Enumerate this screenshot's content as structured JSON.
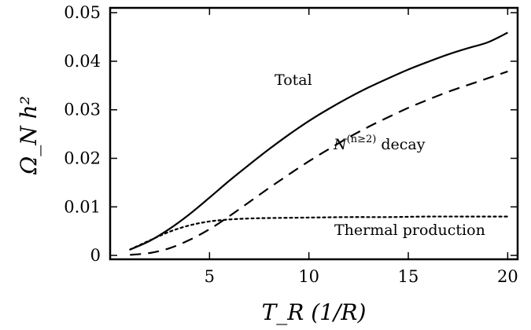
{
  "chart_data": {
    "type": "line",
    "xlabel": "T_R (1/R)",
    "ylabel": "Ω_N h²",
    "xlim": [
      0,
      20.5
    ],
    "ylim": [
      -0.0008,
      0.051
    ],
    "xticks": [
      5,
      10,
      15,
      20
    ],
    "xtick_labels": [
      "5",
      "10",
      "15",
      "20"
    ],
    "yticks": [
      0,
      0.01,
      0.02,
      0.03,
      0.04,
      0.05
    ],
    "ytick_labels": [
      "0",
      "0.01",
      "0.02",
      "0.03",
      "0.04",
      "0.05"
    ],
    "grid": false,
    "legend": "none",
    "series": [
      {
        "name": "Total",
        "style": "solid",
        "x": [
          1,
          2,
          3,
          4,
          5,
          6,
          7,
          8,
          9,
          10,
          11,
          12,
          13,
          14,
          15,
          16,
          17,
          18,
          19,
          20
        ],
        "y": [
          0.0012,
          0.003,
          0.0055,
          0.0085,
          0.0119,
          0.0154,
          0.0187,
          0.0219,
          0.0249,
          0.0277,
          0.0302,
          0.0325,
          0.0346,
          0.0365,
          0.0383,
          0.0399,
          0.0414,
          0.0427,
          0.0439,
          0.0459
        ]
      },
      {
        "name": "N^(n≥2) decay",
        "style": "dashed",
        "x": [
          1,
          2,
          3,
          4,
          5,
          6,
          7,
          8,
          9,
          10,
          11,
          12,
          13,
          14,
          15,
          16,
          17,
          18,
          19,
          20
        ],
        "y": [
          0.0001,
          0.0005,
          0.0015,
          0.0032,
          0.0054,
          0.0081,
          0.011,
          0.0139,
          0.0167,
          0.0194,
          0.0219,
          0.0243,
          0.0265,
          0.0285,
          0.0304,
          0.0321,
          0.0337,
          0.0351,
          0.0365,
          0.0379
        ]
      },
      {
        "name": "Thermal production",
        "style": "dotted",
        "x": [
          1,
          2,
          3,
          4,
          5,
          6,
          7,
          8,
          10,
          12,
          14,
          16,
          18,
          20
        ],
        "y": [
          0.0012,
          0.0031,
          0.0049,
          0.0062,
          0.007,
          0.0074,
          0.0076,
          0.0077,
          0.0078,
          0.0079,
          0.0079,
          0.008,
          0.008,
          0.008
        ]
      }
    ],
    "annotations": {
      "total": "Total",
      "decay_base": "N",
      "decay_sup": "(n≥2)",
      "decay_word": "decay",
      "thermal": "Thermal production"
    }
  }
}
